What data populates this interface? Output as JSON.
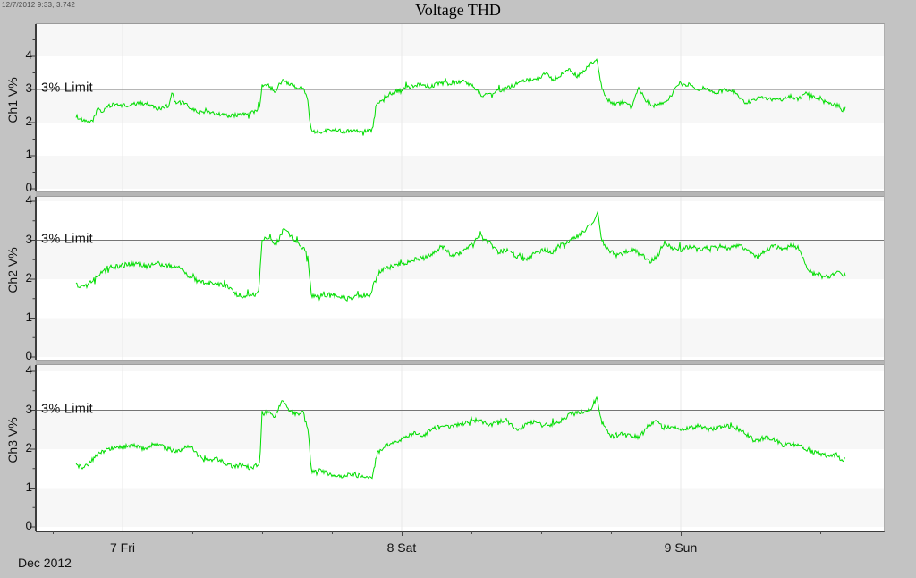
{
  "header": {
    "title": "Voltage THD",
    "cursor_readout": "12/7/2012 9:33, 3.742"
  },
  "colors": {
    "page_bg": "#c3c3c3",
    "plot_bg": "#ffffff",
    "plot_band": "#f7f7f7",
    "series_line": "#00dd00",
    "limit_line": "#757575",
    "axis": "#3c3c3c",
    "gridline": "#e9e9e9",
    "divider": "#b5b5b5",
    "text": "#111111"
  },
  "chart_data": {
    "type": "line",
    "title": "Voltage THD",
    "x_axis": {
      "unit": "hours since 2012-12-07 00:00",
      "range": [
        -7.46,
        65.5
      ],
      "day_ticks": [
        {
          "t": 0,
          "label": "7 Fri"
        },
        {
          "t": 24,
          "label": "8 Sat"
        },
        {
          "t": 48,
          "label": "9 Sun"
        }
      ],
      "month_label": "Dec 2012",
      "gridlines_t": [
        0,
        24,
        48
      ]
    },
    "y_axis": {
      "range": [
        0,
        4
      ],
      "ticks": [
        0,
        1,
        2,
        3,
        4
      ],
      "unit": "V%"
    },
    "limit_line": {
      "value": 3,
      "label": "3% Limit"
    },
    "legend": "none",
    "grid": "horizontal-bands",
    "series": [
      {
        "name": "Ch1 V%",
        "points": [
          [
            -4.0,
            2.2
          ],
          [
            -3.4,
            2.05
          ],
          [
            -2.9,
            2.0
          ],
          [
            -2.5,
            2.1
          ],
          [
            -2.1,
            2.45
          ],
          [
            -1.8,
            2.3
          ],
          [
            -1.3,
            2.5
          ],
          [
            -0.5,
            2.55
          ],
          [
            0.5,
            2.5
          ],
          [
            1.5,
            2.6
          ],
          [
            2.4,
            2.55
          ],
          [
            3.0,
            2.4
          ],
          [
            3.8,
            2.5
          ],
          [
            4.1,
            2.55
          ],
          [
            4.25,
            3.0
          ],
          [
            4.5,
            2.6
          ],
          [
            5.2,
            2.6
          ],
          [
            5.8,
            2.45
          ],
          [
            6.5,
            2.3
          ],
          [
            7.3,
            2.35
          ],
          [
            8.4,
            2.25
          ],
          [
            9.3,
            2.2
          ],
          [
            10.0,
            2.25
          ],
          [
            10.8,
            2.25
          ],
          [
            11.4,
            2.35
          ],
          [
            11.8,
            2.45
          ],
          [
            12.0,
            3.1
          ],
          [
            12.5,
            3.15
          ],
          [
            13.1,
            2.95
          ],
          [
            13.8,
            3.3
          ],
          [
            14.2,
            3.2
          ],
          [
            14.8,
            3.1
          ],
          [
            15.5,
            3.05
          ],
          [
            15.9,
            2.7
          ],
          [
            16.2,
            1.75
          ],
          [
            17.0,
            1.72
          ],
          [
            18.0,
            1.8
          ],
          [
            19.0,
            1.73
          ],
          [
            19.8,
            1.78
          ],
          [
            20.8,
            1.73
          ],
          [
            21.5,
            1.78
          ],
          [
            21.8,
            2.5
          ],
          [
            22.4,
            2.75
          ],
          [
            23.2,
            2.9
          ],
          [
            24.0,
            3.0
          ],
          [
            24.8,
            3.1
          ],
          [
            25.6,
            3.15
          ],
          [
            26.3,
            3.05
          ],
          [
            27.2,
            3.2
          ],
          [
            28.2,
            3.18
          ],
          [
            29.2,
            3.25
          ],
          [
            30.1,
            3.1
          ],
          [
            31.0,
            2.8
          ],
          [
            31.8,
            2.9
          ],
          [
            32.8,
            3.0
          ],
          [
            33.8,
            3.15
          ],
          [
            34.7,
            3.3
          ],
          [
            35.6,
            3.28
          ],
          [
            36.3,
            3.5
          ],
          [
            37.0,
            3.3
          ],
          [
            37.7,
            3.45
          ],
          [
            38.4,
            3.6
          ],
          [
            39.1,
            3.4
          ],
          [
            39.8,
            3.6
          ],
          [
            40.4,
            3.8
          ],
          [
            40.8,
            3.9
          ],
          [
            41.1,
            3.2
          ],
          [
            41.6,
            2.7
          ],
          [
            42.4,
            2.55
          ],
          [
            43.1,
            2.62
          ],
          [
            43.8,
            2.45
          ],
          [
            44.4,
            3.05
          ],
          [
            44.9,
            2.7
          ],
          [
            45.6,
            2.5
          ],
          [
            46.5,
            2.6
          ],
          [
            47.2,
            2.8
          ],
          [
            47.8,
            3.2
          ],
          [
            48.4,
            3.1
          ],
          [
            48.9,
            3.18
          ],
          [
            49.4,
            3.0
          ],
          [
            50.2,
            3.0
          ],
          [
            51.0,
            2.9
          ],
          [
            51.9,
            3.0
          ],
          [
            52.7,
            2.9
          ],
          [
            53.5,
            2.6
          ],
          [
            54.2,
            2.65
          ],
          [
            55.0,
            2.78
          ],
          [
            55.8,
            2.7
          ],
          [
            56.5,
            2.68
          ],
          [
            57.3,
            2.8
          ],
          [
            58.1,
            2.72
          ],
          [
            58.8,
            2.88
          ],
          [
            59.6,
            2.75
          ],
          [
            60.4,
            2.62
          ],
          [
            61.1,
            2.55
          ],
          [
            61.6,
            2.5
          ],
          [
            61.9,
            2.35
          ],
          [
            62.2,
            2.5
          ]
        ]
      },
      {
        "name": "Ch2 V%",
        "points": [
          [
            -4.0,
            1.85
          ],
          [
            -3.3,
            1.78
          ],
          [
            -2.7,
            1.95
          ],
          [
            -2.1,
            2.1
          ],
          [
            -1.3,
            2.3
          ],
          [
            0.0,
            2.35
          ],
          [
            1.0,
            2.4
          ],
          [
            2.0,
            2.33
          ],
          [
            3.0,
            2.4
          ],
          [
            4.0,
            2.35
          ],
          [
            5.0,
            2.3
          ],
          [
            5.5,
            2.1
          ],
          [
            6.5,
            1.95
          ],
          [
            7.5,
            1.9
          ],
          [
            8.5,
            1.85
          ],
          [
            9.2,
            1.8
          ],
          [
            9.8,
            1.6
          ],
          [
            10.8,
            1.55
          ],
          [
            11.7,
            1.65
          ],
          [
            12.0,
            3.0
          ],
          [
            12.6,
            3.05
          ],
          [
            13.2,
            2.9
          ],
          [
            13.9,
            3.3
          ],
          [
            14.3,
            3.15
          ],
          [
            14.9,
            2.95
          ],
          [
            15.6,
            2.8
          ],
          [
            15.95,
            2.55
          ],
          [
            16.25,
            1.55
          ],
          [
            17.3,
            1.58
          ],
          [
            18.3,
            1.62
          ],
          [
            19.3,
            1.5
          ],
          [
            20.3,
            1.55
          ],
          [
            21.3,
            1.6
          ],
          [
            21.8,
            2.1
          ],
          [
            22.5,
            2.25
          ],
          [
            23.3,
            2.35
          ],
          [
            24.2,
            2.4
          ],
          [
            25.0,
            2.5
          ],
          [
            26.0,
            2.55
          ],
          [
            26.8,
            2.7
          ],
          [
            27.5,
            2.85
          ],
          [
            28.3,
            2.6
          ],
          [
            29.2,
            2.7
          ],
          [
            30.0,
            2.9
          ],
          [
            30.8,
            3.1
          ],
          [
            31.5,
            2.95
          ],
          [
            32.3,
            2.7
          ],
          [
            33.0,
            2.75
          ],
          [
            33.8,
            2.6
          ],
          [
            34.6,
            2.5
          ],
          [
            35.4,
            2.65
          ],
          [
            36.2,
            2.75
          ],
          [
            37.0,
            2.7
          ],
          [
            37.8,
            2.9
          ],
          [
            38.5,
            3.0
          ],
          [
            39.2,
            3.1
          ],
          [
            39.9,
            3.3
          ],
          [
            40.5,
            3.5
          ],
          [
            40.85,
            3.75
          ],
          [
            41.2,
            3.0
          ],
          [
            41.8,
            2.75
          ],
          [
            42.5,
            2.6
          ],
          [
            43.3,
            2.7
          ],
          [
            44.0,
            2.75
          ],
          [
            44.7,
            2.6
          ],
          [
            45.4,
            2.45
          ],
          [
            46.0,
            2.6
          ],
          [
            46.6,
            2.95
          ],
          [
            47.2,
            2.8
          ],
          [
            48.0,
            2.75
          ],
          [
            48.8,
            2.85
          ],
          [
            49.6,
            2.75
          ],
          [
            50.4,
            2.8
          ],
          [
            51.2,
            2.85
          ],
          [
            52.0,
            2.8
          ],
          [
            52.8,
            2.85
          ],
          [
            53.6,
            2.8
          ],
          [
            54.4,
            2.6
          ],
          [
            55.2,
            2.7
          ],
          [
            56.0,
            2.85
          ],
          [
            56.8,
            2.75
          ],
          [
            57.6,
            2.9
          ],
          [
            58.3,
            2.75
          ],
          [
            58.8,
            2.3
          ],
          [
            59.4,
            2.1
          ],
          [
            60.0,
            2.15
          ],
          [
            60.8,
            2.05
          ],
          [
            61.4,
            2.2
          ],
          [
            61.9,
            2.1
          ],
          [
            62.2,
            2.15
          ]
        ]
      },
      {
        "name": "Ch3 V%",
        "points": [
          [
            -4.0,
            1.6
          ],
          [
            -3.4,
            1.5
          ],
          [
            -2.8,
            1.65
          ],
          [
            -2.0,
            1.9
          ],
          [
            -1.0,
            2.0
          ],
          [
            0.0,
            2.05
          ],
          [
            1.0,
            2.1
          ],
          [
            2.0,
            2.0
          ],
          [
            2.8,
            2.15
          ],
          [
            3.6,
            2.05
          ],
          [
            4.4,
            1.95
          ],
          [
            5.2,
            2.0
          ],
          [
            5.8,
            2.1
          ],
          [
            6.5,
            1.85
          ],
          [
            7.3,
            1.7
          ],
          [
            8.0,
            1.75
          ],
          [
            8.8,
            1.65
          ],
          [
            9.5,
            1.55
          ],
          [
            10.3,
            1.6
          ],
          [
            11.0,
            1.5
          ],
          [
            11.8,
            1.65
          ],
          [
            12.0,
            2.9
          ],
          [
            12.5,
            2.95
          ],
          [
            13.0,
            2.8
          ],
          [
            13.8,
            3.3
          ],
          [
            14.2,
            3.0
          ],
          [
            14.8,
            2.9
          ],
          [
            15.5,
            2.95
          ],
          [
            15.95,
            2.5
          ],
          [
            16.25,
            1.4
          ],
          [
            17.0,
            1.45
          ],
          [
            18.0,
            1.35
          ],
          [
            19.0,
            1.3
          ],
          [
            20.0,
            1.35
          ],
          [
            20.8,
            1.25
          ],
          [
            21.5,
            1.3
          ],
          [
            21.9,
            1.9
          ],
          [
            22.7,
            2.1
          ],
          [
            23.5,
            2.2
          ],
          [
            24.3,
            2.3
          ],
          [
            25.0,
            2.4
          ],
          [
            25.8,
            2.35
          ],
          [
            26.6,
            2.5
          ],
          [
            27.4,
            2.6
          ],
          [
            28.2,
            2.55
          ],
          [
            29.0,
            2.65
          ],
          [
            29.8,
            2.7
          ],
          [
            30.6,
            2.75
          ],
          [
            31.4,
            2.6
          ],
          [
            32.2,
            2.7
          ],
          [
            33.0,
            2.75
          ],
          [
            33.8,
            2.5
          ],
          [
            34.6,
            2.6
          ],
          [
            35.4,
            2.7
          ],
          [
            36.2,
            2.6
          ],
          [
            37.0,
            2.65
          ],
          [
            37.8,
            2.75
          ],
          [
            38.6,
            2.9
          ],
          [
            39.4,
            2.95
          ],
          [
            40.2,
            3.0
          ],
          [
            40.8,
            3.35
          ],
          [
            41.2,
            2.7
          ],
          [
            42.0,
            2.3
          ],
          [
            42.8,
            2.4
          ],
          [
            43.6,
            2.35
          ],
          [
            44.4,
            2.3
          ],
          [
            45.0,
            2.5
          ],
          [
            45.8,
            2.75
          ],
          [
            46.5,
            2.55
          ],
          [
            47.3,
            2.6
          ],
          [
            48.0,
            2.5
          ],
          [
            48.8,
            2.55
          ],
          [
            49.6,
            2.6
          ],
          [
            50.4,
            2.5
          ],
          [
            51.2,
            2.55
          ],
          [
            52.0,
            2.6
          ],
          [
            52.8,
            2.5
          ],
          [
            53.6,
            2.4
          ],
          [
            54.4,
            2.2
          ],
          [
            55.2,
            2.3
          ],
          [
            56.0,
            2.25
          ],
          [
            56.8,
            2.1
          ],
          [
            57.6,
            2.15
          ],
          [
            58.4,
            2.05
          ],
          [
            59.2,
            1.95
          ],
          [
            60.0,
            1.9
          ],
          [
            60.8,
            1.8
          ],
          [
            61.4,
            1.85
          ],
          [
            61.9,
            1.7
          ],
          [
            62.2,
            1.78
          ]
        ]
      }
    ],
    "noise": {
      "jitter_amplitude": 0.12,
      "spike_probability": 0.05,
      "spike_amplitude": 0.3
    }
  }
}
